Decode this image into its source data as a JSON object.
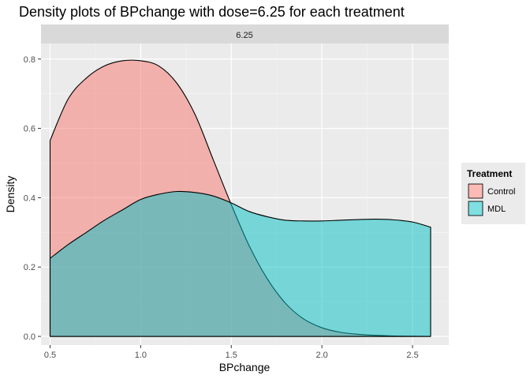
{
  "chart_data": {
    "type": "area",
    "title": "Density plots of BPchange with dose=6.25 for each treatment",
    "facet_label": "6.25",
    "xlabel": "BPchange",
    "ylabel": "Density",
    "xlim": [
      0.45,
      2.7
    ],
    "ylim": [
      -0.025,
      0.845
    ],
    "x_ticks": [
      0.5,
      1.0,
      1.5,
      2.0,
      2.5
    ],
    "x_tick_labels": [
      "0.5",
      "1.0",
      "1.5",
      "2.0",
      "2.5"
    ],
    "y_ticks": [
      0.0,
      0.2,
      0.4,
      0.6,
      0.8
    ],
    "y_tick_labels": [
      "0.0",
      "0.2",
      "0.4",
      "0.6",
      "0.8"
    ],
    "grid": true,
    "legend": {
      "title": "Treatment",
      "position": "right"
    },
    "series": [
      {
        "name": "Control",
        "color": "#F8766D",
        "x": [
          0.5,
          0.6,
          0.7,
          0.8,
          0.9,
          1.0,
          1.1,
          1.2,
          1.3,
          1.4,
          1.5,
          1.6,
          1.7,
          1.8,
          1.9,
          2.0,
          2.1,
          2.2,
          2.3,
          2.4,
          2.5,
          2.6
        ],
        "y": [
          0.565,
          0.685,
          0.745,
          0.78,
          0.795,
          0.795,
          0.78,
          0.73,
          0.64,
          0.51,
          0.38,
          0.26,
          0.165,
          0.095,
          0.05,
          0.025,
          0.012,
          0.006,
          0.003,
          0.001,
          0.0005,
          0.0
        ]
      },
      {
        "name": "MDL",
        "color": "#00BFC4",
        "x": [
          0.5,
          0.6,
          0.7,
          0.8,
          0.9,
          1.0,
          1.1,
          1.2,
          1.3,
          1.4,
          1.5,
          1.6,
          1.7,
          1.8,
          1.9,
          2.0,
          2.1,
          2.2,
          2.3,
          2.4,
          2.5,
          2.6
        ],
        "y": [
          0.225,
          0.265,
          0.3,
          0.335,
          0.365,
          0.395,
          0.41,
          0.418,
          0.415,
          0.405,
          0.385,
          0.36,
          0.345,
          0.335,
          0.333,
          0.333,
          0.335,
          0.337,
          0.338,
          0.336,
          0.33,
          0.315
        ]
      }
    ]
  }
}
